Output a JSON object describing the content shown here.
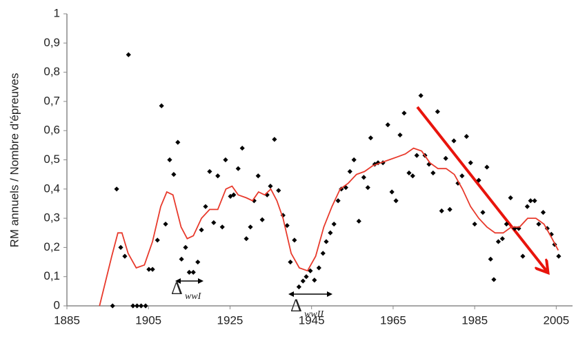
{
  "chart_data": {
    "type": "scatter",
    "y_label": "RM annuels / Nombre d'épreuves",
    "xlim": [
      1885,
      2009
    ],
    "xticks": [
      1885,
      1905,
      1925,
      1945,
      1965,
      1985,
      2005
    ],
    "ylim": [
      0,
      1
    ],
    "yticks": [
      0,
      {
        "value": 0.1,
        "label": "0,1"
      },
      {
        "value": 0.2,
        "label": "0,2"
      },
      {
        "value": 0.3,
        "label": "0,3"
      },
      {
        "value": 0.4,
        "label": "0,4"
      },
      {
        "value": 0.5,
        "label": "0,5"
      },
      {
        "value": 0.6,
        "label": "0,6"
      },
      {
        "value": 0.7,
        "label": "0,7"
      },
      {
        "value": 0.8,
        "label": "0,8"
      },
      {
        "value": 0.9,
        "label": "0,9"
      },
      1
    ],
    "grid": false,
    "series": [
      {
        "kind": "markers",
        "color": "#000000",
        "x": [
          1896.2,
          1897.2,
          1898.2,
          1899.2,
          1900.1,
          1901.2,
          1902.2,
          1903.2,
          1904.3,
          1905.1,
          1906,
          1907.2,
          1908.2,
          1909.2,
          1910.2,
          1911.2,
          1912.2,
          1913.1,
          1914.1,
          1915,
          1916,
          1917.1,
          1918,
          1919,
          1920,
          1921,
          1922,
          1923.1,
          1923.9,
          1925.1,
          1925.9,
          1927,
          1928,
          1929,
          1930,
          1930.9,
          1931.9,
          1932.9,
          1934.1,
          1934.9,
          1935.9,
          1936.9,
          1938,
          1939,
          1939.8,
          1940.8,
          1941.9,
          1942.9,
          1943.7,
          1944.7,
          1945.7,
          1946.8,
          1947.8,
          1948.6,
          1949.6,
          1950.5,
          1951.5,
          1952.3,
          1953.4,
          1954.4,
          1955.4,
          1956.6,
          1957.8,
          1958.8,
          1959.5,
          1960.5,
          1961.3,
          1962.5,
          1963.7,
          1964.7,
          1965.7,
          1966.7,
          1967.7,
          1968.9,
          1969.8,
          1970.8,
          1971.8,
          1972.8,
          1973.8,
          1974.8,
          1975.9,
          1976.9,
          1977.9,
          1978.9,
          1979.9,
          1980.9,
          1981.9,
          1983,
          1984,
          1985,
          1986,
          1987,
          1988,
          1988.9,
          1989.7,
          1990.8,
          1991.8,
          1992.8,
          1993.8,
          1994.8,
          1995.8,
          1996.8,
          1997.9,
          1998.7,
          1999.7,
          2000.7,
          2001.8,
          2002.8,
          2003.8,
          2004.6,
          2005.6
        ],
        "values": [
          0,
          0.4,
          0.2,
          0.17,
          0.86,
          0,
          0,
          0,
          0,
          0.125,
          0.125,
          0.225,
          0.685,
          0.28,
          0.5,
          0.45,
          0.56,
          0.16,
          0.2,
          0.115,
          0.115,
          0.15,
          0.26,
          0.34,
          0.46,
          0.285,
          0.445,
          0.27,
          0.5,
          0.375,
          0.38,
          0.47,
          0.54,
          0.23,
          0.27,
          0.36,
          0.445,
          0.295,
          0.38,
          0.41,
          0.57,
          0.395,
          0.31,
          0.275,
          0.15,
          0.225,
          0.065,
          0.085,
          0.1,
          0.12,
          0.088,
          0.13,
          0.18,
          0.22,
          0.25,
          0.28,
          0.36,
          0.4,
          0.405,
          0.46,
          0.5,
          0.29,
          0.44,
          0.405,
          0.575,
          0.485,
          0.49,
          0.49,
          0.62,
          0.39,
          0.36,
          0.585,
          0.66,
          0.455,
          0.445,
          0.515,
          0.72,
          0.515,
          0.485,
          0.455,
          0.665,
          0.325,
          0.505,
          0.33,
          0.565,
          0.42,
          0.445,
          0.58,
          0.49,
          0.28,
          0.43,
          0.32,
          0.475,
          0.16,
          0.09,
          0.22,
          0.23,
          0.28,
          0.37,
          0.265,
          0.265,
          0.17,
          0.34,
          0.36,
          0.36,
          0.28,
          0.32,
          0.265,
          0.245,
          0.21,
          0.17
        ]
      },
      {
        "kind": "line",
        "color": "#e8392b",
        "x": [
          1893,
          1896,
          1897.5,
          1898.5,
          1900,
          1902,
          1904,
          1906,
          1908,
          1909.5,
          1911,
          1913,
          1914.5,
          1916,
          1918,
          1920,
          1922,
          1924,
          1925.5,
          1927,
          1929,
          1930.5,
          1932,
          1933.5,
          1935,
          1936.5,
          1938,
          1940,
          1942,
          1944,
          1946,
          1948,
          1950,
          1952,
          1954,
          1956,
          1958,
          1960,
          1962,
          1964,
          1966,
          1968,
          1970,
          1972,
          1974,
          1976,
          1978,
          1980,
          1982,
          1984,
          1986,
          1988,
          1990,
          1992,
          1994,
          1996,
          1998,
          2000,
          2002,
          2004,
          2005.5
        ],
        "values": [
          0,
          0.17,
          0.25,
          0.25,
          0.18,
          0.13,
          0.14,
          0.22,
          0.34,
          0.39,
          0.38,
          0.27,
          0.23,
          0.24,
          0.3,
          0.33,
          0.33,
          0.4,
          0.41,
          0.38,
          0.37,
          0.36,
          0.39,
          0.38,
          0.4,
          0.36,
          0.3,
          0.18,
          0.13,
          0.12,
          0.17,
          0.27,
          0.34,
          0.4,
          0.42,
          0.45,
          0.46,
          0.48,
          0.49,
          0.5,
          0.51,
          0.52,
          0.54,
          0.53,
          0.49,
          0.47,
          0.47,
          0.45,
          0.4,
          0.34,
          0.3,
          0.27,
          0.25,
          0.25,
          0.27,
          0.27,
          0.3,
          0.3,
          0.28,
          0.23,
          0.19
        ]
      }
    ],
    "annotations": [
      {
        "symbol": "Δ",
        "subscript": "wwI"
      },
      {
        "symbol": "Δ",
        "subscript": "wwII"
      }
    ]
  }
}
